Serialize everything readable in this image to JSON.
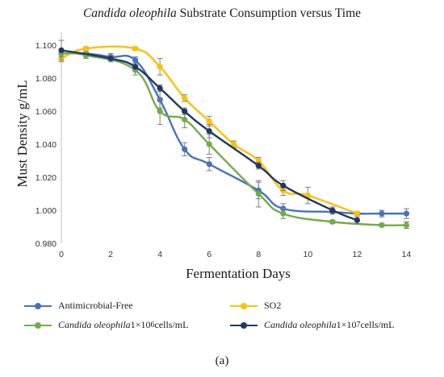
{
  "chart_data": {
    "type": "line",
    "title_italic": "Candida oleophila",
    "title_rest": " Substrate Consumption versus Time",
    "xlabel": "Fermentation Days",
    "ylabel": "Must Density g/mL",
    "xlim": [
      0,
      15
    ],
    "ylim": [
      0.98,
      1.105
    ],
    "x_ticks": [
      "0",
      "2",
      "4",
      "6",
      "8",
      "10",
      "12",
      "14"
    ],
    "y_ticks": [
      "0.980",
      "1.000",
      "1.020",
      "1.040",
      "1.060",
      "1.080",
      "1.100"
    ],
    "grid": false,
    "legend_position": "bottom",
    "series": [
      {
        "name": "Antimicrobial-Free",
        "color": "#4472c4",
        "x": [
          0,
          1,
          2,
          3,
          4,
          5,
          6,
          8,
          9,
          11,
          12,
          13,
          14
        ],
        "y": [
          1.095,
          1.095,
          1.093,
          1.091,
          1.067,
          1.037,
          1.028,
          1.012,
          1.001,
          0.999,
          0.998,
          0.998,
          0.998
        ],
        "err": [
          0.002,
          0.002,
          0.002,
          0.002,
          0.005,
          0.004,
          0.004,
          0.005,
          0.003,
          0.001,
          0.001,
          0.002,
          0.003
        ]
      },
      {
        "name": "SO2",
        "color": "#ffc000",
        "x": [
          0,
          1,
          3,
          4,
          5,
          6,
          7,
          8,
          9,
          10,
          12
        ],
        "y": [
          1.092,
          1.098,
          1.098,
          1.087,
          1.068,
          1.054,
          1.04,
          1.03,
          1.012,
          1.009,
          0.998
        ],
        "err": [
          0.002,
          0.001,
          0.001,
          0.005,
          0.002,
          0.003,
          0.002,
          0.002,
          0.003,
          0.005,
          0.001
        ]
      },
      {
        "name_italic": "Candida oleophila",
        "name_rest": " 1×10",
        "name_sup": "6",
        "name_after": " cells/mL",
        "color": "#70ad47",
        "x": [
          0,
          1,
          3,
          4,
          5,
          6,
          8,
          9,
          11,
          13,
          14
        ],
        "y": [
          1.095,
          1.094,
          1.085,
          1.06,
          1.055,
          1.04,
          1.01,
          0.998,
          0.993,
          0.991,
          0.991
        ],
        "err": [
          0.002,
          0.002,
          0.003,
          0.008,
          0.005,
          0.006,
          0.008,
          0.003,
          0.001,
          0.001,
          0.002
        ]
      },
      {
        "name_italic": "Candida oleophila",
        "name_rest": " 1×10",
        "name_sup": "7",
        "name_after": " cells/mL",
        "color": "#203864",
        "x": [
          0,
          2,
          3,
          4,
          5,
          6,
          8,
          9,
          11,
          12
        ],
        "y": [
          1.097,
          1.092,
          1.087,
          1.074,
          1.06,
          1.048,
          1.027,
          1.015,
          1.0,
          0.994
        ],
        "err": [
          0.006,
          0.002,
          0.002,
          0.002,
          0.002,
          0.004,
          0.002,
          0.003,
          0.002,
          0.002
        ]
      }
    ]
  },
  "caption": "(a)"
}
